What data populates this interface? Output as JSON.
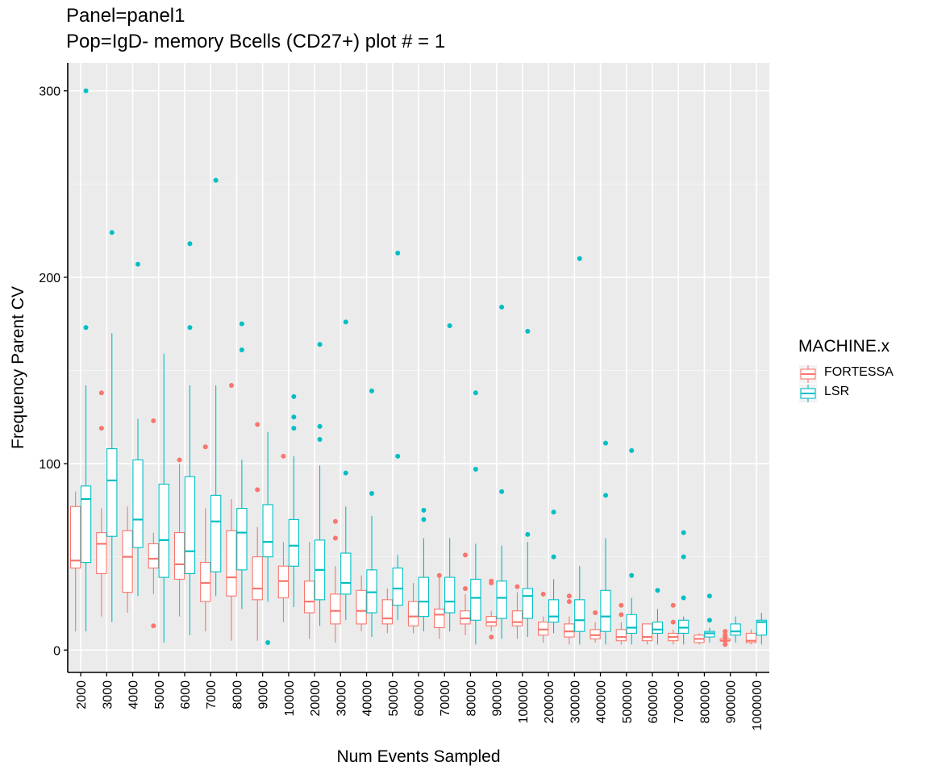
{
  "chart_data": {
    "type": "box",
    "title": "Panel=panel1",
    "subtitle": "Pop=IgD- memory Bcells (CD27+) plot # = 1",
    "xlabel": "Num Events Sampled",
    "ylabel": "Frequency Parent CV",
    "ylim": [
      -12,
      315
    ],
    "yticks": [
      0,
      100,
      200,
      300
    ],
    "grid": true,
    "legend_title": "MACHINE.x",
    "legend_position": "right",
    "categories": [
      "2000",
      "3000",
      "4000",
      "5000",
      "6000",
      "7000",
      "8000",
      "9000",
      "10000",
      "20000",
      "30000",
      "40000",
      "50000",
      "60000",
      "70000",
      "80000",
      "90000",
      "100000",
      "200000",
      "300000",
      "400000",
      "500000",
      "600000",
      "700000",
      "800000",
      "900000",
      "1000000"
    ],
    "series": [
      {
        "name": "FORTESSA",
        "color": "#F8766D",
        "boxes": [
          {
            "lw": 10,
            "q1": 44,
            "med": 48,
            "q3": 77,
            "uw": 85,
            "out": []
          },
          {
            "lw": 18,
            "q1": 41,
            "med": 57,
            "q3": 63,
            "uw": 76,
            "out": [
              119,
              138
            ]
          },
          {
            "lw": 20,
            "q1": 31,
            "med": 50,
            "q3": 64,
            "uw": 77,
            "out": []
          },
          {
            "lw": 30,
            "q1": 44,
            "med": 49,
            "q3": 57,
            "uw": 63,
            "out": [
              123,
              13
            ]
          },
          {
            "lw": 18,
            "q1": 38,
            "med": 46,
            "q3": 63,
            "uw": 100,
            "out": [
              102
            ]
          },
          {
            "lw": 10,
            "q1": 26,
            "med": 36,
            "q3": 47,
            "uw": 76,
            "out": [
              109
            ]
          },
          {
            "lw": 5,
            "q1": 29,
            "med": 39,
            "q3": 64,
            "uw": 81,
            "out": [
              142
            ]
          },
          {
            "lw": 5,
            "q1": 27,
            "med": 33,
            "q3": 50,
            "uw": 66,
            "out": [
              86,
              121
            ]
          },
          {
            "lw": 15,
            "q1": 28,
            "med": 37,
            "q3": 45,
            "uw": 58,
            "out": [
              104
            ]
          },
          {
            "lw": 6,
            "q1": 20,
            "med": 26,
            "q3": 37,
            "uw": 58,
            "out": []
          },
          {
            "lw": 4,
            "q1": 14,
            "med": 21,
            "q3": 30,
            "uw": 45,
            "out": [
              60,
              69
            ]
          },
          {
            "lw": 10,
            "q1": 14,
            "med": 21,
            "q3": 32,
            "uw": 40,
            "out": []
          },
          {
            "lw": 9,
            "q1": 14,
            "med": 17,
            "q3": 27,
            "uw": 33,
            "out": []
          },
          {
            "lw": 9,
            "q1": 13,
            "med": 18,
            "q3": 26,
            "uw": 36,
            "out": []
          },
          {
            "lw": 6,
            "q1": 12,
            "med": 19,
            "q3": 22,
            "uw": 40,
            "out": [
              40
            ]
          },
          {
            "lw": 8,
            "q1": 14,
            "med": 17,
            "q3": 21,
            "uw": 30,
            "out": [
              33,
              51
            ]
          },
          {
            "lw": 10,
            "q1": 13,
            "med": 15,
            "q3": 18,
            "uw": 21,
            "out": [
              7,
              36,
              37
            ]
          },
          {
            "lw": 6,
            "q1": 13,
            "med": 15,
            "q3": 21,
            "uw": 31,
            "out": [
              34
            ]
          },
          {
            "lw": 4,
            "q1": 8,
            "med": 11,
            "q3": 15,
            "uw": 18,
            "out": [
              30
            ]
          },
          {
            "lw": 3,
            "q1": 7,
            "med": 10,
            "q3": 14,
            "uw": 18,
            "out": [
              26,
              29
            ]
          },
          {
            "lw": 4,
            "q1": 6,
            "med": 8,
            "q3": 11,
            "uw": 15,
            "out": [
              20
            ]
          },
          {
            "lw": 3,
            "q1": 5,
            "med": 7,
            "q3": 11,
            "uw": 15,
            "out": [
              19,
              24
            ]
          },
          {
            "lw": 3,
            "q1": 5,
            "med": 7,
            "q3": 14,
            "uw": 14,
            "out": []
          },
          {
            "lw": 3,
            "q1": 5,
            "med": 7,
            "q3": 9,
            "uw": 11,
            "out": [
              15,
              24
            ]
          },
          {
            "lw": 3,
            "q1": 4,
            "med": 6,
            "q3": 8,
            "uw": 9,
            "out": []
          },
          {
            "lw": 5,
            "q1": 5,
            "med": 5,
            "q3": 6,
            "uw": 6,
            "out": [
              3,
              5,
              7,
              8,
              10
            ]
          },
          {
            "lw": 3,
            "q1": 4,
            "med": 5,
            "q3": 9,
            "uw": 11,
            "out": []
          }
        ]
      },
      {
        "name": "LSR",
        "color": "#00BFC4",
        "boxes": [
          {
            "lw": 10,
            "q1": 47,
            "med": 81,
            "q3": 88,
            "uw": 142,
            "out": [
              173,
              300
            ]
          },
          {
            "lw": 15,
            "q1": 61,
            "med": 91,
            "q3": 108,
            "uw": 170,
            "out": [
              224
            ]
          },
          {
            "lw": 29,
            "q1": 55,
            "med": 70,
            "q3": 102,
            "uw": 124,
            "out": [
              207
            ]
          },
          {
            "lw": 4,
            "q1": 39,
            "med": 59,
            "q3": 89,
            "uw": 159,
            "out": []
          },
          {
            "lw": 8,
            "q1": 41,
            "med": 53,
            "q3": 93,
            "uw": 142,
            "out": [
              173,
              218
            ]
          },
          {
            "lw": 29,
            "q1": 42,
            "med": 69,
            "q3": 83,
            "uw": 142,
            "out": [
              252
            ]
          },
          {
            "lw": 22,
            "q1": 43,
            "med": 63,
            "q3": 76,
            "uw": 102,
            "out": [
              161,
              175
            ]
          },
          {
            "lw": 26,
            "q1": 50,
            "med": 58,
            "q3": 78,
            "uw": 117,
            "out": [
              4
            ]
          },
          {
            "lw": 23,
            "q1": 45,
            "med": 56,
            "q3": 70,
            "uw": 104,
            "out": [
              119,
              125,
              136
            ]
          },
          {
            "lw": 13,
            "q1": 27,
            "med": 43,
            "q3": 59,
            "uw": 99,
            "out": [
              113,
              120,
              164
            ]
          },
          {
            "lw": 16,
            "q1": 30,
            "med": 36,
            "q3": 52,
            "uw": 77,
            "out": [
              95,
              176
            ]
          },
          {
            "lw": 7,
            "q1": 20,
            "med": 31,
            "q3": 43,
            "uw": 72,
            "out": [
              84,
              139
            ]
          },
          {
            "lw": 16,
            "q1": 24,
            "med": 33,
            "q3": 44,
            "uw": 51,
            "out": [
              104,
              213
            ]
          },
          {
            "lw": 10,
            "q1": 18,
            "med": 26,
            "q3": 39,
            "uw": 60,
            "out": [
              70,
              75
            ]
          },
          {
            "lw": 10,
            "q1": 20,
            "med": 26,
            "q3": 39,
            "uw": 60,
            "out": [
              174
            ]
          },
          {
            "lw": 3,
            "q1": 16,
            "med": 28,
            "q3": 38,
            "uw": 57,
            "out": [
              97,
              138
            ]
          },
          {
            "lw": 6,
            "q1": 17,
            "med": 28,
            "q3": 37,
            "uw": 56,
            "out": [
              85,
              184
            ]
          },
          {
            "lw": 7,
            "q1": 17,
            "med": 29,
            "q3": 33,
            "uw": 58,
            "out": [
              62,
              171
            ]
          },
          {
            "lw": 9,
            "q1": 15,
            "med": 18,
            "q3": 27,
            "uw": 38,
            "out": [
              50,
              74
            ]
          },
          {
            "lw": 3,
            "q1": 10,
            "med": 16,
            "q3": 27,
            "uw": 45,
            "out": [
              210
            ]
          },
          {
            "lw": 3,
            "q1": 10,
            "med": 18,
            "q3": 32,
            "uw": 60,
            "out": [
              83,
              111
            ]
          },
          {
            "lw": 3,
            "q1": 9,
            "med": 12,
            "q3": 19,
            "uw": 28,
            "out": [
              40,
              107
            ]
          },
          {
            "lw": 3,
            "q1": 9,
            "med": 11,
            "q3": 15,
            "uw": 22,
            "out": [
              32
            ]
          },
          {
            "lw": 3,
            "q1": 9,
            "med": 12,
            "q3": 16,
            "uw": 18,
            "out": [
              28,
              50,
              63
            ]
          },
          {
            "lw": 4,
            "q1": 7,
            "med": 9,
            "q3": 10,
            "uw": 12,
            "out": [
              16,
              29
            ]
          },
          {
            "lw": 4,
            "q1": 8,
            "med": 10,
            "q3": 14,
            "uw": 18,
            "out": []
          },
          {
            "lw": 3,
            "q1": 8,
            "med": 15,
            "q3": 16,
            "uw": 20,
            "out": []
          }
        ]
      }
    ]
  }
}
